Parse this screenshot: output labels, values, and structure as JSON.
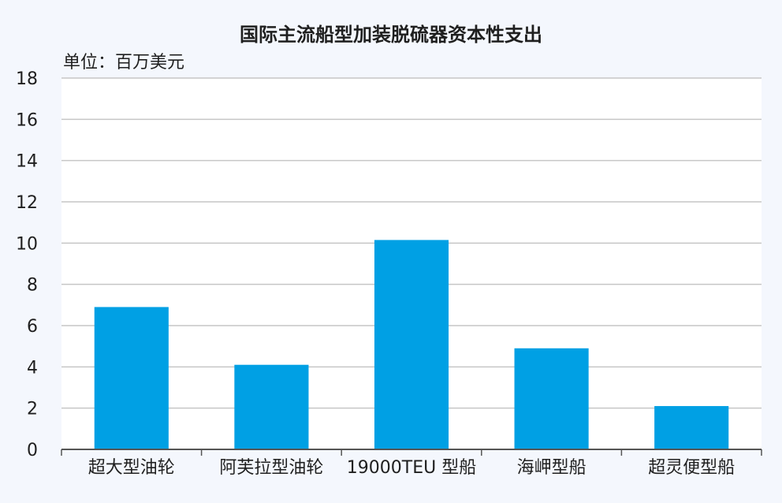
{
  "chart_data": {
    "type": "bar",
    "title": "国际主流船型加装脱硫器资本性支出",
    "unit_label": "单位：百万美元",
    "categories": [
      "超大型油轮",
      "阿芙拉型油轮",
      "19000TEU 型船",
      "海岬型船",
      "超灵便型船"
    ],
    "values": [
      6.9,
      4.1,
      10.15,
      4.9,
      2.1
    ],
    "ylim": [
      0,
      18
    ],
    "yticks": [
      0,
      2,
      4,
      6,
      8,
      10,
      12,
      14,
      16,
      18
    ],
    "grid": true,
    "legend": "none",
    "colors": {
      "bar": "#00a0e4",
      "grid": "#c6c6c6",
      "axis": "#555555",
      "plot_bg": "#ffffff",
      "page_bg": "#f4f7fd"
    }
  }
}
